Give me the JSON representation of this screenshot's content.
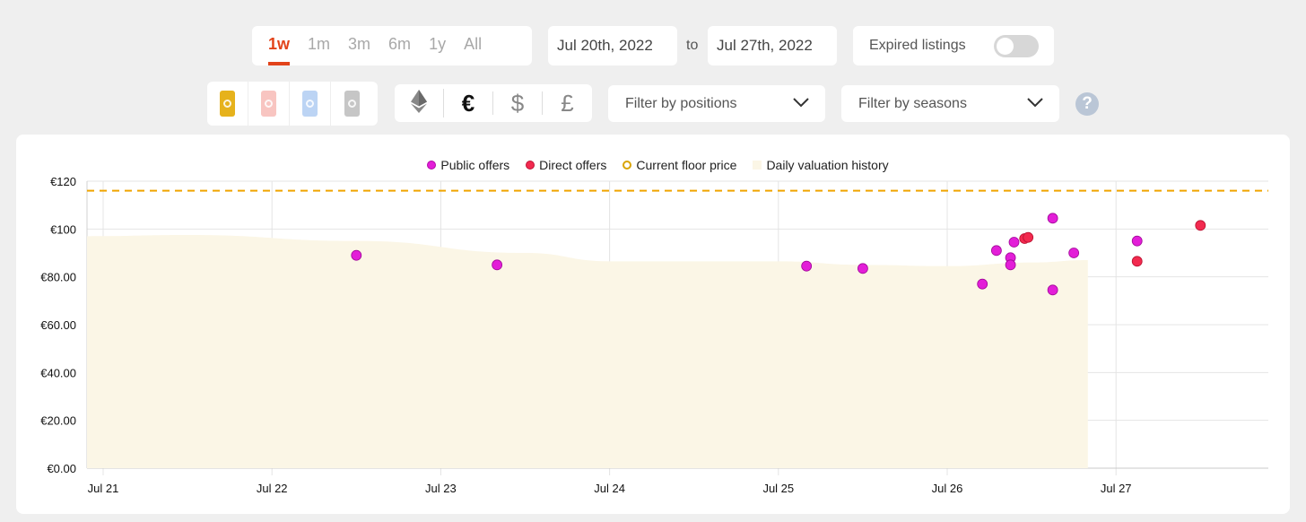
{
  "range_tabs": [
    {
      "label": "1w",
      "active": true
    },
    {
      "label": "1m",
      "active": false
    },
    {
      "label": "3m",
      "active": false
    },
    {
      "label": "6m",
      "active": false
    },
    {
      "label": "1y",
      "active": false
    },
    {
      "label": "All",
      "active": false
    }
  ],
  "date_range": {
    "from": "Jul 20th, 2022",
    "to_label": "to",
    "to": "Jul 27th, 2022"
  },
  "expired_listings": {
    "label": "Expired listings",
    "enabled": false
  },
  "card_rarities": [
    {
      "name": "limited",
      "color": "#e6b21c"
    },
    {
      "name": "rare",
      "color": "#f8c5c1"
    },
    {
      "name": "super-rare",
      "color": "#bcd4f4"
    },
    {
      "name": "unique",
      "color": "#c6c6c6"
    }
  ],
  "currencies": [
    {
      "symbol": "Ξ",
      "name": "ethereum",
      "active": false
    },
    {
      "symbol": "€",
      "name": "euro",
      "active": true
    },
    {
      "symbol": "$",
      "name": "dollar",
      "active": false
    },
    {
      "symbol": "£",
      "name": "pound",
      "active": false
    }
  ],
  "filters": {
    "positions": "Filter by positions",
    "seasons": "Filter by seasons",
    "help": "?"
  },
  "colors": {
    "accent": "#e2431a",
    "public_offer": "#e31ed8",
    "direct_offer": "#f22a4f",
    "floor": "#f0a500",
    "valuation_fill": "#fbf6e6"
  },
  "chart_data": {
    "type": "scatter",
    "legend": [
      {
        "name": "Public offers",
        "color": "#e31ed8"
      },
      {
        "name": "Direct offers",
        "color": "#f22a4f"
      },
      {
        "name": "Current floor price",
        "color": "#f0a500"
      },
      {
        "name": "Daily valuation history",
        "color": "#fbf6e6"
      }
    ],
    "x_ticks": [
      "Jul 21",
      "Jul 22",
      "Jul 23",
      "Jul 24",
      "Jul 25",
      "Jul 26",
      "Jul 27"
    ],
    "y_ticks": [
      "€0.00",
      "€20.00",
      "€40.00",
      "€60.00",
      "€80.00",
      "€100",
      "€120"
    ],
    "ylim": [
      0,
      120
    ],
    "xlim": [
      "Jul 20 21:00",
      "Jul 27 21:00"
    ],
    "grid": true,
    "legend_position": "top",
    "floor_price": 116,
    "valuation_history": [
      {
        "x": "Jul 20 22:00",
        "y": 97
      },
      {
        "x": "Jul 21 12:00",
        "y": 97.5
      },
      {
        "x": "Jul 22 12:00",
        "y": 95
      },
      {
        "x": "Jul 23 12:00",
        "y": 90
      },
      {
        "x": "Jul 24 00:00",
        "y": 86.5
      },
      {
        "x": "Jul 25 00:00",
        "y": 86.5
      },
      {
        "x": "Jul 25 12:00",
        "y": 85
      },
      {
        "x": "Jul 26 00:00",
        "y": 84.5
      },
      {
        "x": "Jul 26 12:00",
        "y": 86
      },
      {
        "x": "Jul 26 20:00",
        "y": 87
      }
    ],
    "series": [
      {
        "name": "Public offers",
        "points": [
          {
            "x": "Jul 22 12:00",
            "y": 89
          },
          {
            "x": "Jul 23 08:00",
            "y": 85
          },
          {
            "x": "Jul 25 04:00",
            "y": 84.5
          },
          {
            "x": "Jul 25 12:00",
            "y": 83.5
          },
          {
            "x": "Jul 26 05:00",
            "y": 77
          },
          {
            "x": "Jul 26 07:00",
            "y": 91
          },
          {
            "x": "Jul 26 09:00",
            "y": 88
          },
          {
            "x": "Jul 26 09:00",
            "y": 85
          },
          {
            "x": "Jul 26 09:30",
            "y": 94.5
          },
          {
            "x": "Jul 26 15:00",
            "y": 104.5
          },
          {
            "x": "Jul 26 15:00",
            "y": 74.5
          },
          {
            "x": "Jul 26 18:00",
            "y": 90
          },
          {
            "x": "Jul 27 03:00",
            "y": 95
          }
        ]
      },
      {
        "name": "Direct offers",
        "points": [
          {
            "x": "Jul 26 11:00",
            "y": 96
          },
          {
            "x": "Jul 26 11:30",
            "y": 96.5
          },
          {
            "x": "Jul 27 03:00",
            "y": 86.5
          },
          {
            "x": "Jul 27 12:00",
            "y": 101.5
          }
        ]
      }
    ]
  }
}
